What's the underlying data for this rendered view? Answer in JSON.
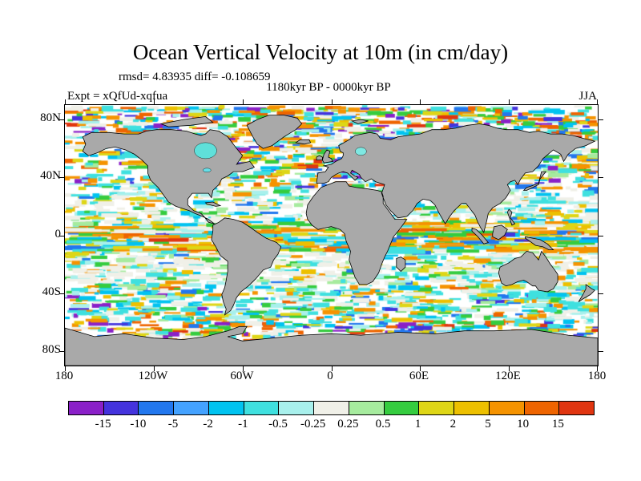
{
  "title": "Ocean Vertical Velocity at 10m (in cm/day)",
  "stats_line": "rmsd= 4.83935 diff= -0.108659",
  "period_line": "1180kyr BP - 0000kyr BP",
  "expt_label": "Expt = xQfUd-xqfua",
  "season_label": "JJA",
  "axes": {
    "lat_ticks": [
      "80N",
      "40N",
      "0",
      "40S",
      "80S"
    ],
    "lon_ticks": [
      "180",
      "120W",
      "60W",
      "0",
      "60E",
      "120E",
      "180"
    ]
  },
  "chart_data": {
    "type": "heatmap",
    "title": "Ocean Vertical Velocity at 10m (in cm/day)",
    "subtitle": "1180kyr BP - 0000kyr BP",
    "stats": {
      "rmsd": 4.83935,
      "diff": -0.108659
    },
    "experiment": "xQfUd-xqfua",
    "season": "JJA",
    "units": "cm/day",
    "projection": "global equirectangular lat-lon map",
    "lon_range": [
      -180,
      180
    ],
    "lat_range": [
      -90,
      90
    ],
    "x_tick_labels": [
      "180",
      "120W",
      "60W",
      "0",
      "60E",
      "120E",
      "180"
    ],
    "y_tick_labels": [
      "80N",
      "40N",
      "0",
      "40S",
      "80S"
    ],
    "land_color": "#a9a9a9",
    "colorbar": {
      "boundaries": [
        -15,
        -10,
        -5,
        -2,
        -1,
        -0.5,
        -0.25,
        0.25,
        0.5,
        1,
        2,
        5,
        10,
        15
      ],
      "colors": [
        "#8a20c8",
        "#4433dd",
        "#2277ee",
        "#44a2ff",
        "#00c3f0",
        "#3fe0df",
        "#a8f0ec",
        "#f0f0e8",
        "#a6eb9e",
        "#35cc3f",
        "#ded616",
        "#edc000",
        "#f59300",
        "#ee6400",
        "#e03510"
      ]
    }
  }
}
